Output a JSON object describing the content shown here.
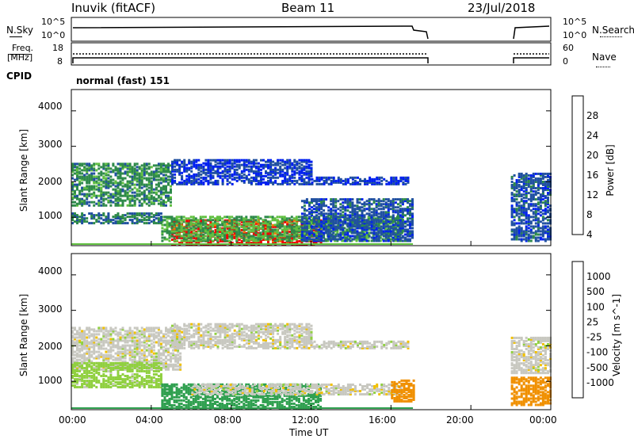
{
  "header": {
    "station": "Inuvik (fitACF)",
    "beam": "Beam 11",
    "date": "23/Jul/2018"
  },
  "summary_panels": {
    "nsky_label": "N.Sky",
    "nsky_ticks": [
      "10^5",
      "10^0"
    ],
    "nsearch_label": "N.Search",
    "nsearch_ticks": [
      "10^5",
      "10^0"
    ],
    "freq_label": [
      "Freq.",
      "[MHz]"
    ],
    "freq_ticks": [
      "18",
      "8"
    ],
    "nave_label": "Nave",
    "nave_ticks": [
      "60",
      "0"
    ],
    "cpid_label": "CPID",
    "cpid_value": "normal (fast) 151"
  },
  "chart_data": [
    {
      "type": "heatmap",
      "name": "power",
      "ylabel": "Slant Range [km]",
      "ylim": [
        200,
        4600
      ],
      "yticks": [
        "4000",
        "3000",
        "2000",
        "1000"
      ],
      "xlim": [
        "00:00",
        "24:00"
      ],
      "colorbar": {
        "label": "Power [dB]",
        "ticks": [
          "28",
          "24",
          "20",
          "16",
          "12",
          "8",
          "4"
        ],
        "colors": [
          "#0020f0",
          "#2050a0",
          "#2e8a4a",
          "#60c040",
          "#f0c000",
          "#f07a00",
          "#f00000"
        ]
      },
      "regions": [
        {
          "t0": 5.0,
          "t1": 12.5,
          "r0": 200,
          "r1": 900,
          "level": 28
        },
        {
          "t0": 4.5,
          "t1": 16.5,
          "r0": 300,
          "r1": 1000,
          "level": 14
        },
        {
          "t0": 0.0,
          "t1": 5.0,
          "r0": 1300,
          "r1": 2500,
          "level": 12
        },
        {
          "t0": 0.0,
          "t1": 4.5,
          "r0": 800,
          "r1": 1100,
          "level": 10
        },
        {
          "t0": 5.0,
          "t1": 12.0,
          "r0": 1900,
          "r1": 2600,
          "level": 6
        },
        {
          "t0": 12.0,
          "t1": 16.8,
          "r0": 1900,
          "r1": 2100,
          "level": 6
        },
        {
          "t0": 11.5,
          "t1": 17.1,
          "r0": 300,
          "r1": 1500,
          "level": 8
        },
        {
          "t0": 22.0,
          "t1": 24.0,
          "r0": 300,
          "r1": 2200,
          "level": 8
        }
      ]
    },
    {
      "type": "heatmap",
      "name": "velocity",
      "ylabel": "Slant Range [km]",
      "ylim": [
        200,
        4600
      ],
      "yticks": [
        "4000",
        "3000",
        "2000",
        "1000"
      ],
      "xlim": [
        "00:00",
        "24:00"
      ],
      "colorbar": {
        "label": "Velocity [m s^-1]",
        "ticks": [
          "1000",
          "500",
          "100",
          "25",
          "-25",
          "-100",
          "-500",
          "-1000"
        ],
        "colors": [
          "#0020c0",
          "#2060a0",
          "#30a050",
          "#90d040",
          "#c8c8c0",
          "#f0c000",
          "#f09000",
          "#f04000",
          "#f00000"
        ]
      },
      "regions": [
        {
          "t0": 0.0,
          "t1": 5.5,
          "r0": 1300,
          "r1": 2500,
          "level": 0
        },
        {
          "t0": 5.0,
          "t1": 12.0,
          "r0": 1900,
          "r1": 2600,
          "level": 0
        },
        {
          "t0": 12.0,
          "t1": 16.8,
          "r0": 1900,
          "r1": 2100,
          "level": 0
        },
        {
          "t0": 0.0,
          "t1": 4.5,
          "r0": 800,
          "r1": 1500,
          "level": 50
        },
        {
          "t0": 4.5,
          "t1": 12.5,
          "r0": 200,
          "r1": 900,
          "level": 200
        },
        {
          "t0": 6.0,
          "t1": 16.5,
          "r0": 600,
          "r1": 900,
          "level": 0
        },
        {
          "t0": 16.0,
          "t1": 17.2,
          "r0": 400,
          "r1": 1000,
          "level": -300
        },
        {
          "t0": 22.0,
          "t1": 24.0,
          "r0": 300,
          "r1": 1100,
          "level": -150
        },
        {
          "t0": 22.0,
          "t1": 24.0,
          "r0": 1200,
          "r1": 2200,
          "level": 0
        }
      ]
    }
  ],
  "x_axis": {
    "ticks": [
      "00:00",
      "04:00",
      "08:00",
      "12:00",
      "16:00",
      "20:00",
      "00:00"
    ],
    "label": "Time UT"
  },
  "coverage": {
    "gap_start": 17.1,
    "gap_end": 22.0
  }
}
